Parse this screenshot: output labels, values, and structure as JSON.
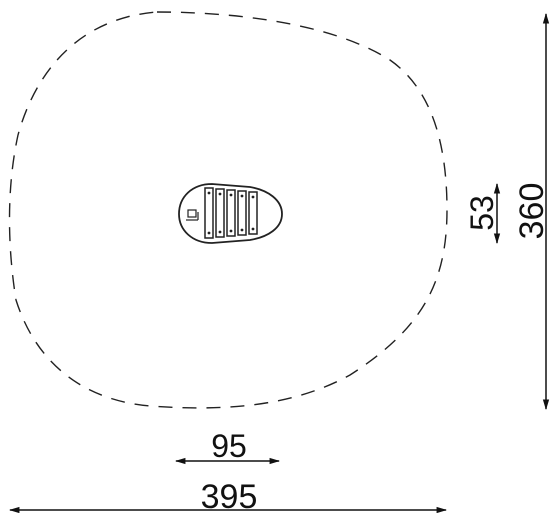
{
  "drawing": {
    "dimensions": {
      "overall_width": "395",
      "equipment_width": "95",
      "overall_height": "360",
      "equipment_height": "53"
    }
  }
}
